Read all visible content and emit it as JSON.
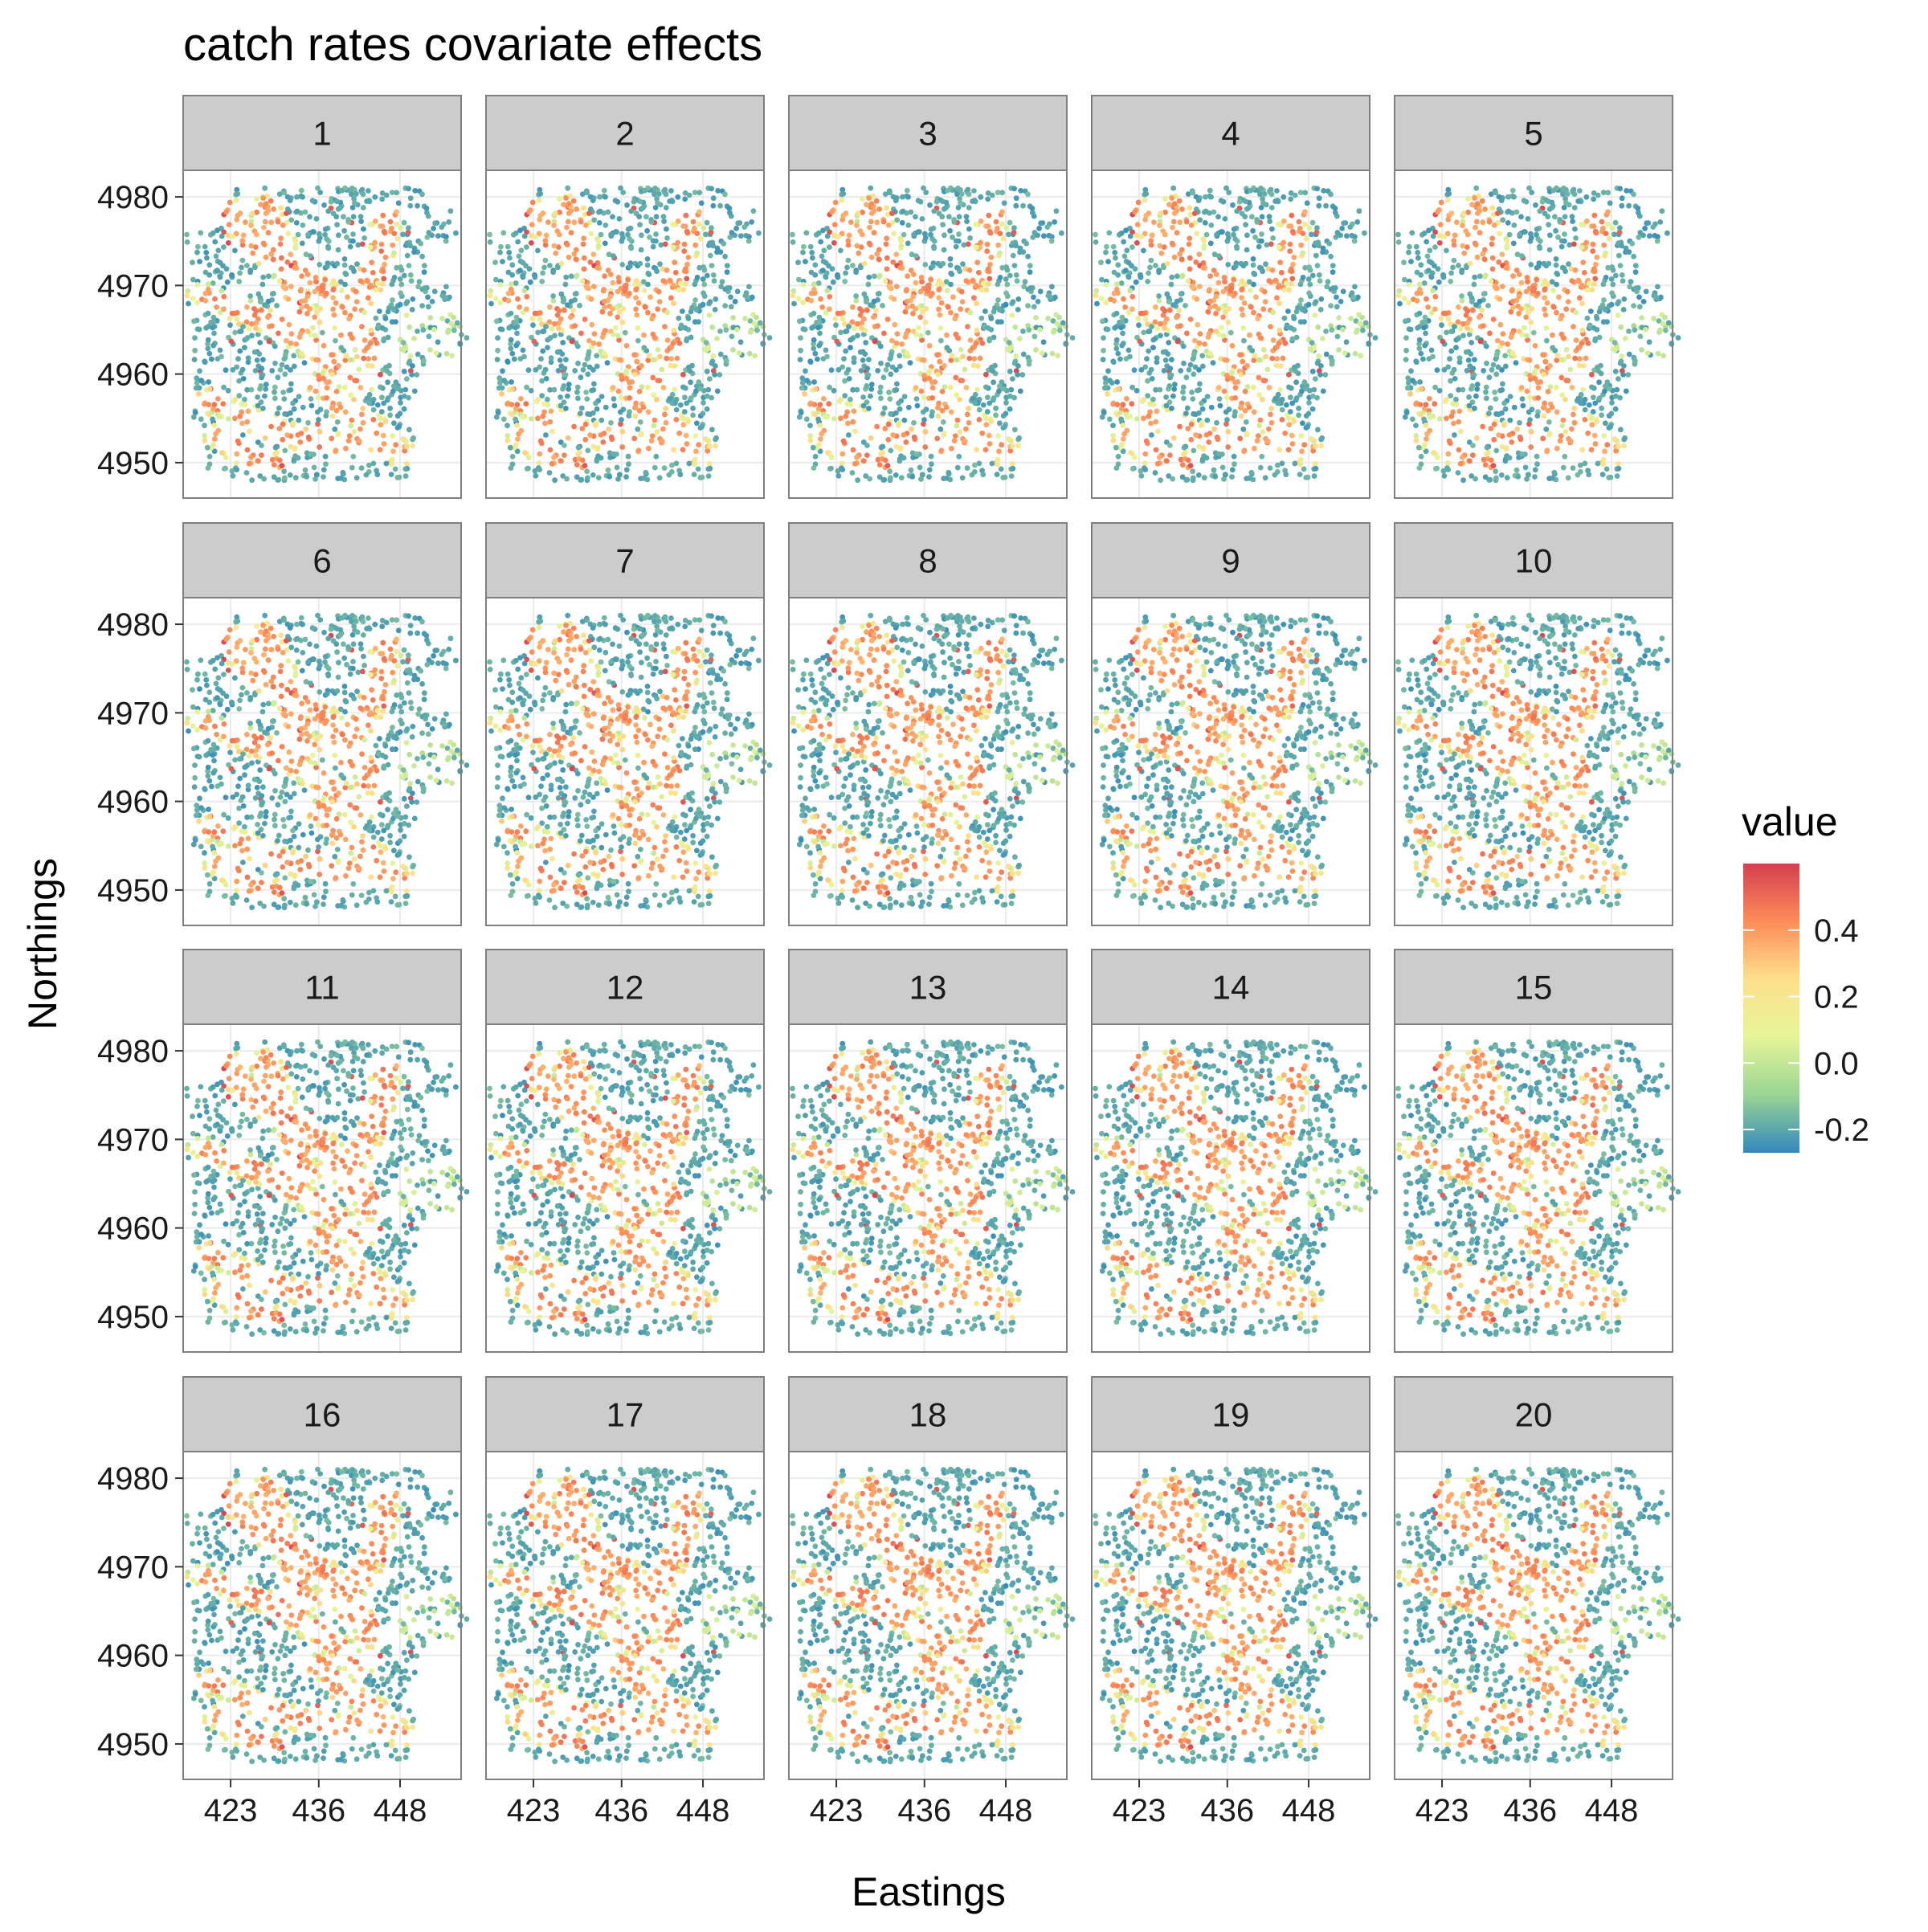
{
  "chart_data": {
    "type": "scatter",
    "title": "catch rates covariate effects",
    "xlabel": "Eastings",
    "ylabel": "Northings",
    "facet_labels": [
      "1",
      "2",
      "3",
      "4",
      "5",
      "6",
      "7",
      "8",
      "9",
      "10",
      "11",
      "12",
      "13",
      "14",
      "15",
      "16",
      "17",
      "18",
      "19",
      "20"
    ],
    "facet_layout": {
      "rows": 4,
      "cols": 5
    },
    "x_ticks": [
      423,
      436,
      448
    ],
    "y_ticks": [
      4950,
      4960,
      4970,
      4980
    ],
    "xlim": [
      416,
      457
    ],
    "ylim": [
      4946,
      4983
    ],
    "colorbar": {
      "title": "value",
      "ticks": [
        0.4,
        0.2,
        0.0,
        -0.2
      ],
      "tick_labels": [
        "0.4",
        "0.2",
        "0.0",
        "-0.2"
      ],
      "range": [
        -0.27,
        0.6
      ],
      "colors": [
        "#3288bd",
        "#99d594",
        "#e6f598",
        "#fee08b",
        "#fc8d59",
        "#d53e4f"
      ]
    },
    "grid": true,
    "legend_position": "right"
  }
}
